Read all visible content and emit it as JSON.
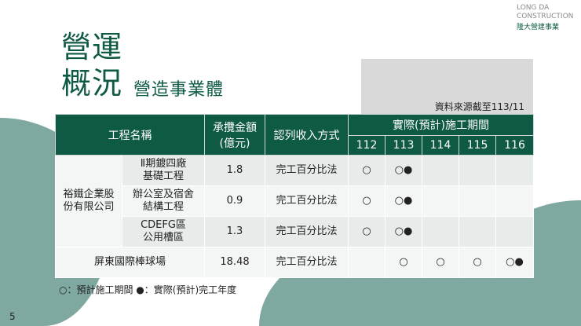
{
  "logo": {
    "line1": "LONG DA",
    "line2": "CONSTRUCTION",
    "cn": "隆大營建事業"
  },
  "title": {
    "line1": "營運",
    "line2": "概況",
    "subtitle": "營造事業體"
  },
  "source": "資料來源截至113/11",
  "table": {
    "headers": {
      "name": "工程名稱",
      "amount_l1": "承攬金額",
      "amount_l2": "(億元)",
      "method": "認列收入方式",
      "period": "實際(預計)施工期間",
      "years": [
        "112",
        "113",
        "114",
        "115",
        "116"
      ]
    },
    "company": {
      "l1": "裕鐵企業股",
      "l2": "份有限公司"
    },
    "rows": [
      {
        "n1": "Ⅱ期鍍四廠",
        "n2": "基礎工程",
        "amount": "1.8",
        "method": "完工百分比法",
        "marks": [
          "○",
          "○●",
          "",
          "",
          ""
        ]
      },
      {
        "n1": "辦公室及宿舍",
        "n2": "結構工程",
        "amount": "0.9",
        "method": "完工百分比法",
        "marks": [
          "○",
          "○●",
          "",
          "",
          ""
        ]
      },
      {
        "n1": "CDEFG區",
        "n2": "公用槽區",
        "amount": "1.3",
        "method": "完工百分比法",
        "marks": [
          "○",
          "○●",
          "",
          "",
          ""
        ]
      },
      {
        "n1": "屏東國際棒球場",
        "amount": "18.48",
        "method": "完工百分比法",
        "marks": [
          "",
          "○",
          "○",
          "○",
          "○●"
        ]
      }
    ]
  },
  "legend": "○：預計施工期間 ●：實際(預計)完工年度",
  "page_number": "5",
  "colors": {
    "brand": "#0f5a45",
    "blob": "#7fa8a0"
  }
}
